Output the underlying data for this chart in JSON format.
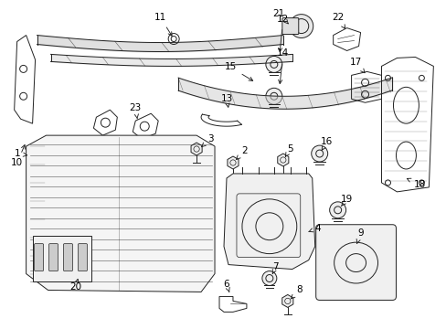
{
  "background_color": "#ffffff",
  "line_color": "#222222",
  "label_color": "#000000",
  "fig_width": 4.89,
  "fig_height": 3.6,
  "dpi": 100
}
